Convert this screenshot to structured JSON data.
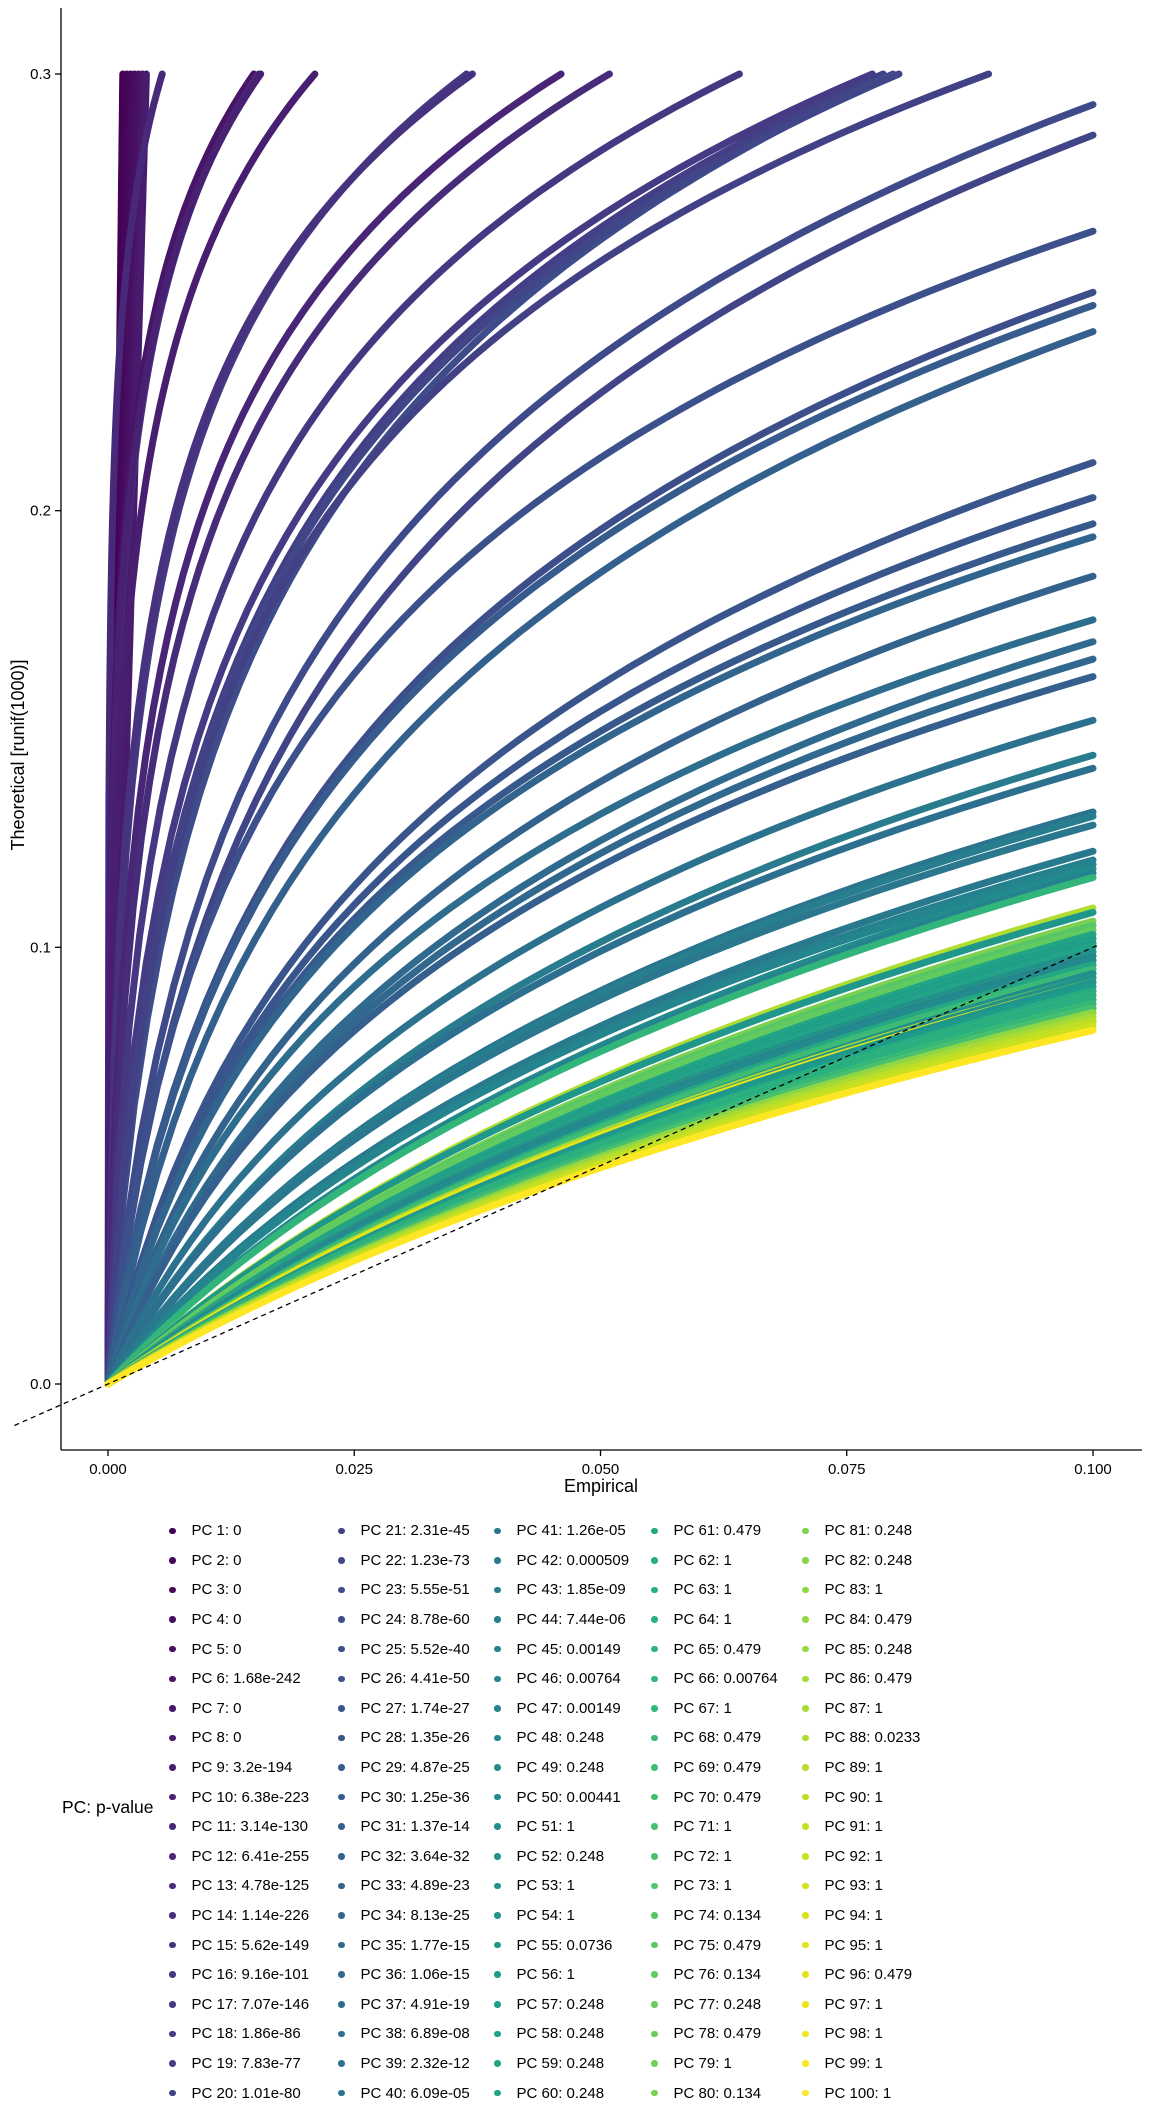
{
  "chart_data": {
    "type": "scatter",
    "xlabel": "Empirical",
    "ylabel": "Theoretical [runif(1000)]",
    "xlim": [
      -0.0095,
      0.1005
    ],
    "ylim": [
      -0.014,
      0.315
    ],
    "x_ticks": [
      "0.000",
      "0.025",
      "0.050",
      "0.075",
      "0.100"
    ],
    "y_ticks": [
      "0.0",
      "0.1",
      "0.2",
      "0.3"
    ],
    "reference_line": {
      "intercept": 0,
      "slope": 1,
      "style": "dashed"
    },
    "grid": false,
    "legend_position": "bottom",
    "legend_title": "PC: p-value",
    "colormap": "viridis",
    "series": [
      {
        "name": "PC 1: 0",
        "color": "#440154",
        "curve": {
          "end_x": 0.0015,
          "end_y": 0.3,
          "k": 200
        }
      },
      {
        "name": "PC 2: 0",
        "color": "#450559",
        "curve": {
          "end_x": 0.0019,
          "end_y": 0.3,
          "k": 200
        }
      },
      {
        "name": "PC 3: 0",
        "color": "#46085C",
        "curve": {
          "end_x": 0.0023,
          "end_y": 0.3,
          "k": 200
        }
      },
      {
        "name": "PC 4: 0",
        "color": "#470D60",
        "curve": {
          "end_x": 0.0027,
          "end_y": 0.3,
          "k": 200
        }
      },
      {
        "name": "PC 5: 0",
        "color": "#471063",
        "curve": {
          "end_x": 0.0031,
          "end_y": 0.3,
          "k": 200
        }
      },
      {
        "name": "PC 6: 1.68e-242",
        "color": "#481467",
        "curve": {
          "end_x": 0.0148,
          "end_y": 0.3,
          "k": 3
        }
      },
      {
        "name": "PC 7: 0",
        "color": "#481769",
        "curve": {
          "end_x": 0.0035,
          "end_y": 0.3,
          "k": 200
        }
      },
      {
        "name": "PC 8: 0",
        "color": "#481B6D",
        "curve": {
          "end_x": 0.0039,
          "end_y": 0.3,
          "k": 200
        }
      },
      {
        "name": "PC 9: 3.2e-194",
        "color": "#481F70",
        "curve": {
          "end_x": 0.021,
          "end_y": 0.3,
          "k": 2.6
        }
      },
      {
        "name": "PC 10: 6.38e-223",
        "color": "#482173",
        "curve": {
          "end_x": 0.0155,
          "end_y": 0.3,
          "k": 2.9
        }
      },
      {
        "name": "PC 11: 3.14e-130",
        "color": "#482576",
        "curve": {
          "end_x": 0.046,
          "end_y": 0.3,
          "k": 2.2
        }
      },
      {
        "name": "PC 12: 6.41e-255",
        "color": "#482878",
        "curve": {
          "end_x": 0.0055,
          "end_y": 0.3,
          "k": 3.5
        }
      },
      {
        "name": "PC 13: 4.78e-125",
        "color": "#472C7A",
        "curve": {
          "end_x": 0.0509,
          "end_y": 0.3,
          "k": 2.1
        }
      },
      {
        "name": "PC 14: 1.14e-226",
        "color": "#472F7D",
        "curve": {
          "end_x": 0.0153,
          "end_y": 0.3,
          "k": 2.8
        }
      },
      {
        "name": "PC 15: 5.62e-149",
        "color": "#46327E",
        "curve": {
          "end_x": 0.037,
          "end_y": 0.3,
          "k": 2.4
        }
      },
      {
        "name": "PC 16: 9.16e-101",
        "color": "#453781",
        "curve": {
          "end_x": 0.0641,
          "end_y": 0.3,
          "k": 2
        }
      },
      {
        "name": "PC 17: 7.07e-146",
        "color": "#453882",
        "curve": {
          "end_x": 0.0364,
          "end_y": 0.3,
          "k": 2.3
        }
      },
      {
        "name": "PC 18: 1.86e-86",
        "color": "#443B84",
        "curve": {
          "end_x": 0.0776,
          "end_y": 0.3,
          "k": 1.9
        }
      },
      {
        "name": "PC 19: 7.83e-77",
        "color": "#433E85",
        "curve": {
          "end_x": 0.0787,
          "end_y": 0.3,
          "k": 1.8
        }
      },
      {
        "name": "PC 20: 1.01e-80",
        "color": "#424186",
        "curve": {
          "end_x": 0.0894,
          "end_y": 0.3,
          "k": 1.9
        }
      },
      {
        "name": "PC 21: 2.31e-45",
        "color": "#414487",
        "curve": {
          "end_x": 0.1,
          "end_y": 0.286,
          "k": 1.5
        }
      },
      {
        "name": "PC 22: 1.23e-73",
        "color": "#404688",
        "curve": {
          "end_x": 0.0803,
          "end_y": 0.3,
          "k": 1.8
        }
      },
      {
        "name": "PC 23: 5.55e-51",
        "color": "#3F4A8A",
        "curve": {
          "end_x": 0.1,
          "end_y": 0.293,
          "k": 1.6
        }
      },
      {
        "name": "PC 24: 8.78e-60",
        "color": "#3E4C8A",
        "curve": {
          "end_x": 0.0797,
          "end_y": 0.3,
          "k": 1.7
        }
      },
      {
        "name": "PC 25: 5.52e-40",
        "color": "#3D4F8A",
        "curve": {
          "end_x": 0.1,
          "end_y": 0.25,
          "k": 1.4
        }
      },
      {
        "name": "PC 26: 4.41e-50",
        "color": "#3C508B",
        "curve": {
          "end_x": 0.1,
          "end_y": 0.264,
          "k": 1.6
        }
      },
      {
        "name": "PC 27: 1.74e-27",
        "color": "#3A548C",
        "curve": {
          "end_x": 0.1,
          "end_y": 0.211,
          "k": 1.2
        }
      },
      {
        "name": "PC 28: 1.35e-26",
        "color": "#39568C",
        "curve": {
          "end_x": 0.1,
          "end_y": 0.203,
          "k": 1.2
        }
      },
      {
        "name": "PC 29: 4.87e-25",
        "color": "#38598C",
        "curve": {
          "end_x": 0.1,
          "end_y": 0.197,
          "k": 1.2
        }
      },
      {
        "name": "PC 30: 1.25e-36",
        "color": "#375B8D",
        "curve": {
          "end_x": 0.1,
          "end_y": 0.247,
          "k": 1.4
        }
      },
      {
        "name": "PC 31: 1.37e-14",
        "color": "#355F8D",
        "curve": {
          "end_x": 0.1,
          "end_y": 0.162,
          "k": 1
        }
      },
      {
        "name": "PC 32: 3.64e-32",
        "color": "#34608D",
        "curve": {
          "end_x": 0.1,
          "end_y": 0.241,
          "k": 1.3
        }
      },
      {
        "name": "PC 33: 4.89e-23",
        "color": "#33638D",
        "curve": {
          "end_x": 0.1,
          "end_y": 0.185,
          "k": 1.1
        }
      },
      {
        "name": "PC 34: 8.13e-25",
        "color": "#32658E",
        "curve": {
          "end_x": 0.1,
          "end_y": 0.194,
          "k": 1.2
        }
      },
      {
        "name": "PC 35: 1.77e-15",
        "color": "#31688E",
        "curve": {
          "end_x": 0.1,
          "end_y": 0.166,
          "k": 1
        }
      },
      {
        "name": "PC 36: 1.06e-15",
        "color": "#306A8E",
        "curve": {
          "end_x": 0.1,
          "end_y": 0.17,
          "k": 1
        }
      },
      {
        "name": "PC 37: 4.91e-19",
        "color": "#2E6D8E",
        "curve": {
          "end_x": 0.1,
          "end_y": 0.175,
          "k": 1.1
        }
      },
      {
        "name": "PC 38: 6.89e-08",
        "color": "#2D6F8E",
        "curve": {
          "end_x": 0.1,
          "end_y": 0.141,
          "k": 0.8
        }
      },
      {
        "name": "PC 39: 2.32e-12",
        "color": "#2C728E",
        "curve": {
          "end_x": 0.1,
          "end_y": 0.152,
          "k": 0.9
        }
      },
      {
        "name": "PC 40: 6.09e-05",
        "color": "#2B748E",
        "curve": {
          "end_x": 0.1,
          "end_y": 0.131,
          "k": 0.7
        }
      },
      {
        "name": "PC 41: 1.26e-05",
        "color": "#2A778E",
        "curve": {
          "end_x": 0.1,
          "end_y": 0.128,
          "k": 0.7
        }
      },
      {
        "name": "PC 42: 0.000509",
        "color": "#29798E",
        "curve": {
          "end_x": 0.1,
          "end_y": 0.122,
          "k": 0.6
        }
      },
      {
        "name": "PC 43: 1.85e-09",
        "color": "#287C8E",
        "curve": {
          "end_x": 0.1,
          "end_y": 0.144,
          "k": 0.8
        }
      },
      {
        "name": "PC 44: 7.44e-06",
        "color": "#277E8E",
        "curve": {
          "end_x": 0.1,
          "end_y": 0.13,
          "k": 0.7
        }
      },
      {
        "name": "PC 45: 0.00149",
        "color": "#26818E",
        "curve": {
          "end_x": 0.1,
          "end_y": 0.12,
          "k": 0.6
        }
      },
      {
        "name": "PC 46: 0.00764",
        "color": "#26828E",
        "curve": {
          "end_x": 0.1,
          "end_y": 0.117,
          "k": 0.5
        }
      },
      {
        "name": "PC 47: 0.00149",
        "color": "#25858E",
        "curve": {
          "end_x": 0.1,
          "end_y": 0.119,
          "k": 0.6
        }
      },
      {
        "name": "PC 48: 0.248",
        "color": "#24878E",
        "curve": {
          "end_x": 0.1,
          "end_y": 0.098,
          "k": 0.3
        }
      },
      {
        "name": "PC 49: 0.248",
        "color": "#238A8D",
        "curve": {
          "end_x": 0.1,
          "end_y": 0.097,
          "k": 0.3
        }
      },
      {
        "name": "PC 50: 0.00441",
        "color": "#228C8D",
        "curve": {
          "end_x": 0.1,
          "end_y": 0.118,
          "k": 0.5
        }
      },
      {
        "name": "PC 51: 1",
        "color": "#218F8D",
        "curve": {
          "end_x": 0.1,
          "end_y": 0.094,
          "k": 0.2
        }
      },
      {
        "name": "PC 52: 0.248",
        "color": "#21918C",
        "curve": {
          "end_x": 0.1,
          "end_y": 0.099,
          "k": 0.3
        }
      },
      {
        "name": "PC 53: 1",
        "color": "#20938C",
        "curve": {
          "end_x": 0.1,
          "end_y": 0.093,
          "k": 0.2
        }
      },
      {
        "name": "PC 54: 1",
        "color": "#1F968B",
        "curve": {
          "end_x": 0.1,
          "end_y": 0.092,
          "k": 0.2
        }
      },
      {
        "name": "PC 55: 0.0736",
        "color": "#1F988B",
        "curve": {
          "end_x": 0.1,
          "end_y": 0.108,
          "k": 0.4
        }
      },
      {
        "name": "PC 56: 1",
        "color": "#1E9B8A",
        "curve": {
          "end_x": 0.1,
          "end_y": 0.091,
          "k": 0.2
        }
      },
      {
        "name": "PC 57: 0.248",
        "color": "#1F9D8A",
        "curve": {
          "end_x": 0.1,
          "end_y": 0.101,
          "k": 0.3
        }
      },
      {
        "name": "PC 58: 0.248",
        "color": "#1F9F88",
        "curve": {
          "end_x": 0.1,
          "end_y": 0.102,
          "k": 0.3
        }
      },
      {
        "name": "PC 59: 0.248",
        "color": "#20A386",
        "curve": {
          "end_x": 0.1,
          "end_y": 0.1,
          "k": 0.3
        }
      },
      {
        "name": "PC 60: 0.248",
        "color": "#22A585",
        "curve": {
          "end_x": 0.1,
          "end_y": 0.103,
          "k": 0.3
        }
      },
      {
        "name": "PC 61: 0.479",
        "color": "#24A884",
        "curve": {
          "end_x": 0.1,
          "end_y": 0.096,
          "k": 0.25
        }
      },
      {
        "name": "PC 62: 1",
        "color": "#26AD81",
        "curve": {
          "end_x": 0.1,
          "end_y": 0.09,
          "k": 0.2
        }
      },
      {
        "name": "PC 63: 1",
        "color": "#28AE80",
        "curve": {
          "end_x": 0.1,
          "end_y": 0.089,
          "k": 0.2
        }
      },
      {
        "name": "PC 64: 1",
        "color": "#2BB07F",
        "curve": {
          "end_x": 0.1,
          "end_y": 0.088,
          "k": 0.2
        }
      },
      {
        "name": "PC 65: 0.479",
        "color": "#2EB37C",
        "curve": {
          "end_x": 0.1,
          "end_y": 0.097,
          "k": 0.25
        }
      },
      {
        "name": "PC 66: 0.00764",
        "color": "#31B57B",
        "curve": {
          "end_x": 0.1,
          "end_y": 0.116,
          "k": 0.5
        }
      },
      {
        "name": "PC 67: 1",
        "color": "#35B779",
        "curve": {
          "end_x": 0.1,
          "end_y": 0.087,
          "k": 0.2
        }
      },
      {
        "name": "PC 68: 0.479",
        "color": "#3ABA76",
        "curve": {
          "end_x": 0.1,
          "end_y": 0.095,
          "k": 0.25
        }
      },
      {
        "name": "PC 69: 0.479",
        "color": "#3DBC74",
        "curve": {
          "end_x": 0.1,
          "end_y": 0.094,
          "k": 0.25
        }
      },
      {
        "name": "PC 70: 0.479",
        "color": "#42BE71",
        "curve": {
          "end_x": 0.1,
          "end_y": 0.098,
          "k": 0.25
        }
      },
      {
        "name": "PC 71: 1",
        "color": "#47C06F",
        "curve": {
          "end_x": 0.1,
          "end_y": 0.086,
          "k": 0.2
        }
      },
      {
        "name": "PC 72: 1",
        "color": "#4CC26C",
        "curve": {
          "end_x": 0.1,
          "end_y": 0.088,
          "k": 0.2
        }
      },
      {
        "name": "PC 73: 1",
        "color": "#51C56A",
        "curve": {
          "end_x": 0.1,
          "end_y": 0.09,
          "k": 0.2
        }
      },
      {
        "name": "PC 74: 0.134",
        "color": "#56C667",
        "curve": {
          "end_x": 0.1,
          "end_y": 0.105,
          "k": 0.35
        }
      },
      {
        "name": "PC 75: 0.479",
        "color": "#5CC863",
        "curve": {
          "end_x": 0.1,
          "end_y": 0.096,
          "k": 0.25
        }
      },
      {
        "name": "PC 76: 0.134",
        "color": "#62CB5F",
        "curve": {
          "end_x": 0.1,
          "end_y": 0.104,
          "k": 0.35
        }
      },
      {
        "name": "PC 77: 0.248",
        "color": "#67CC5C",
        "curve": {
          "end_x": 0.1,
          "end_y": 0.1,
          "k": 0.3
        }
      },
      {
        "name": "PC 78: 0.479",
        "color": "#6DCD59",
        "curve": {
          "end_x": 0.1,
          "end_y": 0.095,
          "k": 0.25
        }
      },
      {
        "name": "PC 79: 1",
        "color": "#73D055",
        "curve": {
          "end_x": 0.1,
          "end_y": 0.087,
          "k": 0.2
        }
      },
      {
        "name": "PC 80: 0.134",
        "color": "#7AD151",
        "curve": {
          "end_x": 0.1,
          "end_y": 0.106,
          "k": 0.35
        }
      },
      {
        "name": "PC 81: 0.248",
        "color": "#7FD34E",
        "curve": {
          "end_x": 0.1,
          "end_y": 0.099,
          "k": 0.3
        }
      },
      {
        "name": "PC 82: 0.248",
        "color": "#86D549",
        "curve": {
          "end_x": 0.1,
          "end_y": 0.101,
          "k": 0.3
        }
      },
      {
        "name": "PC 83: 1",
        "color": "#8DD645",
        "curve": {
          "end_x": 0.1,
          "end_y": 0.085,
          "k": 0.2
        }
      },
      {
        "name": "PC 84: 0.479",
        "color": "#95D840",
        "curve": {
          "end_x": 0.1,
          "end_y": 0.094,
          "k": 0.25
        }
      },
      {
        "name": "PC 85: 0.248",
        "color": "#9AD93C",
        "curve": {
          "end_x": 0.1,
          "end_y": 0.098,
          "k": 0.3
        }
      },
      {
        "name": "PC 86: 0.479",
        "color": "#A2DA37",
        "curve": {
          "end_x": 0.1,
          "end_y": 0.093,
          "k": 0.25
        }
      },
      {
        "name": "PC 87: 1",
        "color": "#A8DB34",
        "curve": {
          "end_x": 0.1,
          "end_y": 0.084,
          "k": 0.2
        }
      },
      {
        "name": "PC 88: 0.0233",
        "color": "#B0DD2F",
        "curve": {
          "end_x": 0.1,
          "end_y": 0.109,
          "k": 0.4
        }
      },
      {
        "name": "PC 89: 1",
        "color": "#B6DE2A",
        "curve": {
          "end_x": 0.1,
          "end_y": 0.086,
          "k": 0.2
        }
      },
      {
        "name": "PC 90: 1",
        "color": "#BEDF26",
        "curve": {
          "end_x": 0.1,
          "end_y": 0.083,
          "k": 0.2
        }
      },
      {
        "name": "PC 91: 1",
        "color": "#C5E021",
        "curve": {
          "end_x": 0.1,
          "end_y": 0.087,
          "k": 0.2
        }
      },
      {
        "name": "PC 92: 1",
        "color": "#CBE11E",
        "curve": {
          "end_x": 0.1,
          "end_y": 0.082,
          "k": 0.2
        }
      },
      {
        "name": "PC 93: 1",
        "color": "#D2E21B",
        "curve": {
          "end_x": 0.1,
          "end_y": 0.089,
          "k": 0.2
        }
      },
      {
        "name": "PC 94: 1",
        "color": "#D8E219",
        "curve": {
          "end_x": 0.1,
          "end_y": 0.085,
          "k": 0.2
        }
      },
      {
        "name": "PC 95: 1",
        "color": "#DFE318",
        "curve": {
          "end_x": 0.1,
          "end_y": 0.086,
          "k": 0.2
        }
      },
      {
        "name": "PC 96: 0.479",
        "color": "#E5E419",
        "curve": {
          "end_x": 0.1,
          "end_y": 0.092,
          "k": 0.25
        }
      },
      {
        "name": "PC 97: 1",
        "color": "#EBE51A",
        "curve": {
          "end_x": 0.1,
          "end_y": 0.084,
          "k": 0.2
        }
      },
      {
        "name": "PC 98: 1",
        "color": "#F1E51D",
        "curve": {
          "end_x": 0.1,
          "end_y": 0.083,
          "k": 0.2
        }
      },
      {
        "name": "PC 99: 1",
        "color": "#F6E620",
        "curve": {
          "end_x": 0.1,
          "end_y": 0.085,
          "k": 0.2
        }
      },
      {
        "name": "PC 100: 1",
        "color": "#FDE725",
        "curve": {
          "end_x": 0.1,
          "end_y": 0.081,
          "k": 0.2
        }
      }
    ]
  }
}
